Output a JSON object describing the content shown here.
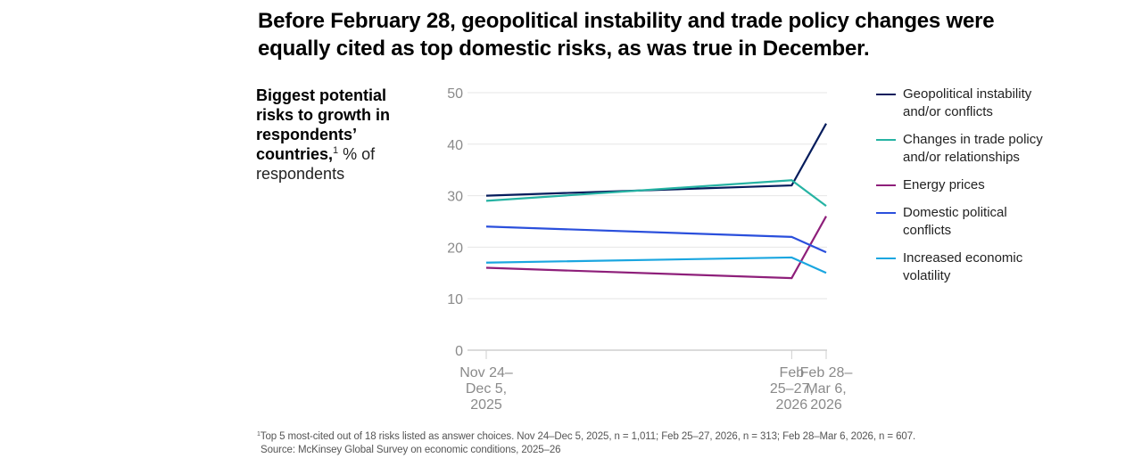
{
  "title": "Before February 28, geopolitical instability and trade policy changes were equally cited as top domestic risks, as was true in December.",
  "subtitle": {
    "bold": "Biggest potential risks to growth in respondents’ countries,",
    "footnote_marker": "1",
    "regular": " % of respondents"
  },
  "footnote": {
    "marker": "1",
    "text": "Top 5 most-cited out of 18 risks listed as answer choices. Nov 24–Dec 5, 2025, n = 1,011; Feb 25–27, 2026, n = 313; Feb 28–Mar 6, 2026, n = 607.",
    "source": "Source: McKinsey Global Survey on economic conditions, 2025–26"
  },
  "chart_data": {
    "type": "line",
    "title": "Biggest potential risks to growth in respondents’ countries, % of respondents",
    "xlabel": "",
    "ylabel": "% of respondents",
    "ylim": [
      0,
      50
    ],
    "yticks": [
      0,
      10,
      20,
      30,
      40,
      50
    ],
    "grid": true,
    "legend_position": "right",
    "x": [
      {
        "label": [
          "Nov 24–",
          "Dec 5,",
          "2025"
        ],
        "pos": 0
      },
      {
        "label": [
          "Feb",
          "25–27,",
          "2026"
        ],
        "pos": 93
      },
      {
        "label": [
          "Feb 28–",
          "Mar 6,",
          "2026"
        ],
        "pos": 103.5
      }
    ],
    "series": [
      {
        "name": "Geopolitical instability and/or conflicts",
        "legend": [
          "Geopolitical instability",
          "and/or conflicts"
        ],
        "color": "#051c5c",
        "values": [
          30,
          32,
          44
        ]
      },
      {
        "name": "Changes in trade policy and/or relationships",
        "legend": [
          "Changes in trade policy",
          "and/or relationships"
        ],
        "color": "#26b3a3",
        "values": [
          29,
          33,
          28
        ]
      },
      {
        "name": "Energy prices",
        "legend": [
          "Energy prices"
        ],
        "color": "#8e1f7a",
        "values": [
          16,
          14,
          26
        ]
      },
      {
        "name": "Domestic political conflicts",
        "legend": [
          "Domestic political",
          "conflicts"
        ],
        "color": "#2a4fdc",
        "values": [
          24,
          22,
          19
        ]
      },
      {
        "name": "Increased economic volatility",
        "legend": [
          "Increased economic",
          "volatility"
        ],
        "color": "#1aa6e0",
        "values": [
          17,
          18,
          15
        ]
      }
    ]
  }
}
